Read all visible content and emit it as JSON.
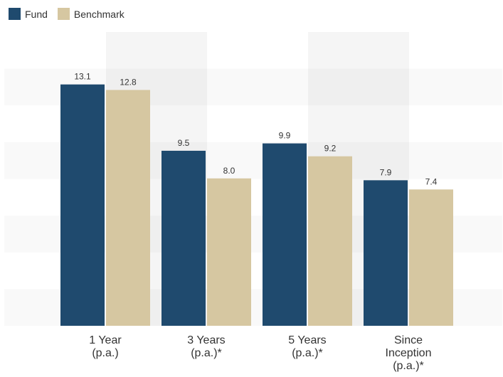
{
  "chart_data": {
    "type": "bar",
    "categories": [
      [
        "1 Year",
        "(p.a.)"
      ],
      [
        "3 Years",
        "(p.a.)*"
      ],
      [
        "5 Years",
        "(p.a.)*"
      ],
      [
        "Since",
        "Inception",
        "(p.a.)*"
      ]
    ],
    "series": [
      {
        "name": "Fund",
        "color": "#1f4a6e",
        "values": [
          13.1,
          9.5,
          9.9,
          7.9
        ],
        "labels": [
          "13.1",
          "9.5",
          "9.9",
          "7.9"
        ]
      },
      {
        "name": "Benchmark",
        "color": "#d6c7a1",
        "values": [
          12.8,
          8.0,
          9.2,
          7.4
        ],
        "labels": [
          "12.8",
          "8.0",
          "9.2",
          "7.4"
        ]
      }
    ],
    "ylim": [
      0,
      15
    ],
    "grid": "horizontal-bands",
    "legend": "top-left",
    "data_labels": true
  }
}
